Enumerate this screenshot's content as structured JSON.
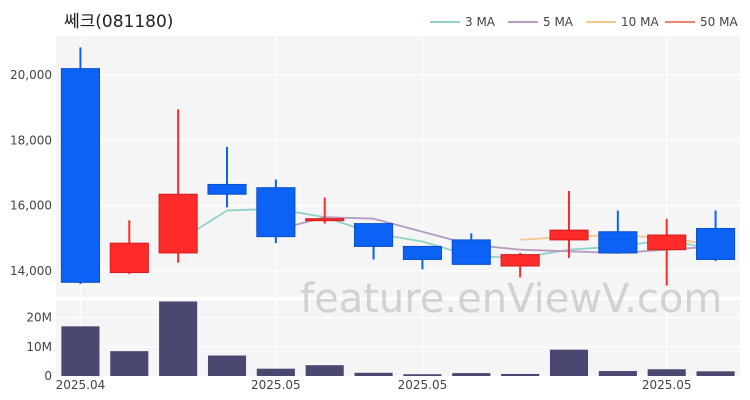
{
  "chart_data": {
    "type": "candlestick",
    "title": "쎄크(081180)",
    "watermark": "feature.enViewV.com",
    "dates": [
      "2025.04",
      "2025.04",
      "2025.04",
      "2025.04",
      "2025.05",
      "2025.05",
      "2025.05",
      "2025.05",
      "2025.05",
      "2025.05",
      "2025.05",
      "2025.05",
      "2025.05",
      "2025.05"
    ],
    "x_ticks": [
      "2025.04",
      "2025.05",
      "2025.05",
      "2025.05"
    ],
    "x_tick_index": [
      0,
      4,
      7,
      12
    ],
    "candles": [
      {
        "open": 20200,
        "high": 20850,
        "low": 13600,
        "close": 13650
      },
      {
        "open": 13950,
        "high": 15550,
        "low": 13900,
        "close": 14850
      },
      {
        "open": 14550,
        "high": 18950,
        "low": 14250,
        "close": 16350
      },
      {
        "open": 16650,
        "high": 17800,
        "low": 15950,
        "close": 16350
      },
      {
        "open": 16550,
        "high": 16800,
        "low": 14850,
        "close": 15050
      },
      {
        "open": 15550,
        "high": 16250,
        "low": 15450,
        "close": 15600
      },
      {
        "open": 15450,
        "high": 15450,
        "low": 14350,
        "close": 14750
      },
      {
        "open": 14750,
        "high": 14750,
        "low": 14050,
        "close": 14350
      },
      {
        "open": 14950,
        "high": 15150,
        "low": 14200,
        "close": 14200
      },
      {
        "open": 14150,
        "high": 14550,
        "low": 13800,
        "close": 14500
      },
      {
        "open": 14950,
        "high": 16450,
        "low": 14400,
        "close": 15250
      },
      {
        "open": 15200,
        "high": 15850,
        "low": 14550,
        "close": 14550
      },
      {
        "open": 14650,
        "high": 15600,
        "low": 13550,
        "close": 15100
      },
      {
        "open": 15300,
        "high": 15850,
        "low": 14300,
        "close": 14350
      }
    ],
    "up_color": "#ff2b2b",
    "down_color": "#0b62f5",
    "moving_averages": [
      {
        "name": "3 MA",
        "color": "#8fd3c8",
        "values": [
          null,
          null,
          14900,
          15850,
          15900,
          15650,
          15150,
          14900,
          14450,
          14400,
          14650,
          14750,
          14950,
          14650
        ]
      },
      {
        "name": "5 MA",
        "color": "#b89bbf",
        "values": [
          null,
          null,
          null,
          null,
          15250,
          15650,
          15600,
          15200,
          14800,
          14650,
          14600,
          14550,
          14650,
          14750
        ]
      },
      {
        "name": "10 MA",
        "color": "#f3c98b",
        "values": [
          null,
          null,
          null,
          null,
          null,
          null,
          null,
          null,
          null,
          14950,
          15050,
          15100,
          15000,
          14800
        ]
      },
      {
        "name": "50 MA",
        "color": "#f2876f",
        "values": [
          null,
          null,
          null,
          null,
          null,
          null,
          null,
          null,
          null,
          null,
          null,
          null,
          null,
          null
        ]
      }
    ],
    "price_axis": {
      "ticks": [
        14000,
        16000,
        18000,
        20000
      ],
      "tick_labels": [
        "14,000",
        "16,000",
        "18,000",
        "20,000"
      ],
      "ylim": [
        13200,
        21200
      ]
    },
    "volume": {
      "values": [
        17000000,
        8500000,
        25500000,
        7000000,
        2500000,
        3700000,
        1100000,
        600000,
        1000000,
        700000,
        9000000,
        1700000,
        2300000,
        1600000
      ],
      "color": "#4a4870",
      "ticks": [
        0,
        10000000,
        20000000
      ],
      "tick_labels": [
        "0",
        "10M",
        "20M"
      ],
      "ylim": [
        0,
        26000000
      ]
    },
    "grid": true,
    "legend_position": "top-right"
  }
}
